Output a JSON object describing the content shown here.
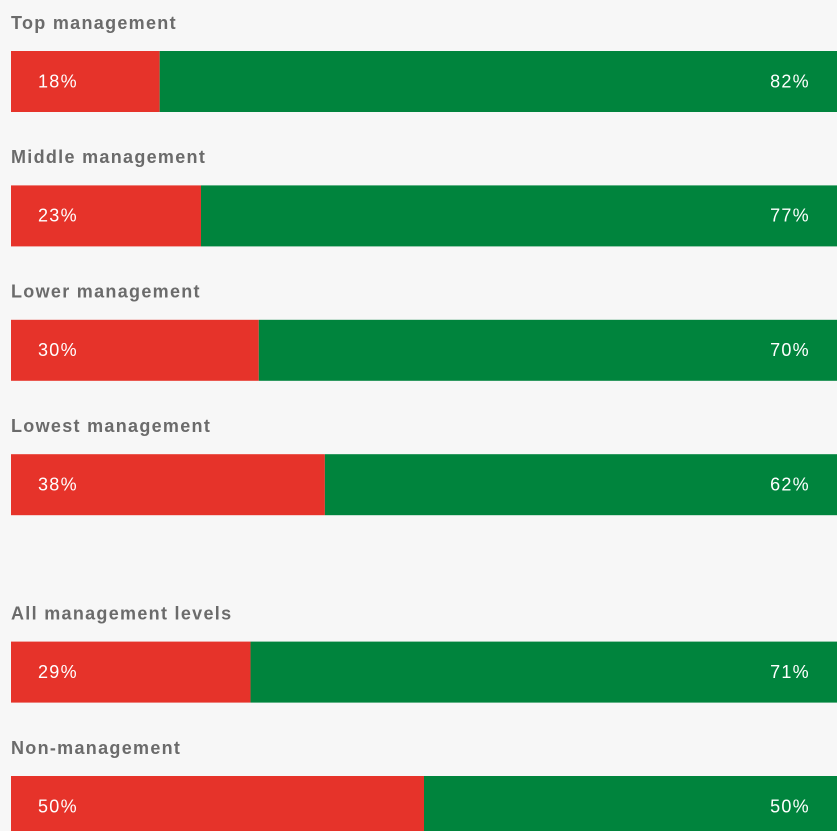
{
  "chart_data": {
    "type": "stacked-bar-horizontal",
    "categories": [
      "Top management",
      "Middle management",
      "Lower management",
      "Lowest management",
      "All management levels",
      "Non-management"
    ],
    "series": [
      {
        "color": "#e6332a",
        "values": [
          18,
          23,
          30,
          38,
          29,
          50
        ],
        "value_labels": [
          "18%",
          "23%",
          "30%",
          "38%",
          "29%",
          "50%"
        ]
      },
      {
        "color": "#00843d",
        "values": [
          82,
          77,
          70,
          62,
          71,
          50
        ],
        "value_labels": [
          "82%",
          "77%",
          "70%",
          "62%",
          "71%",
          "50%"
        ]
      }
    ]
  }
}
